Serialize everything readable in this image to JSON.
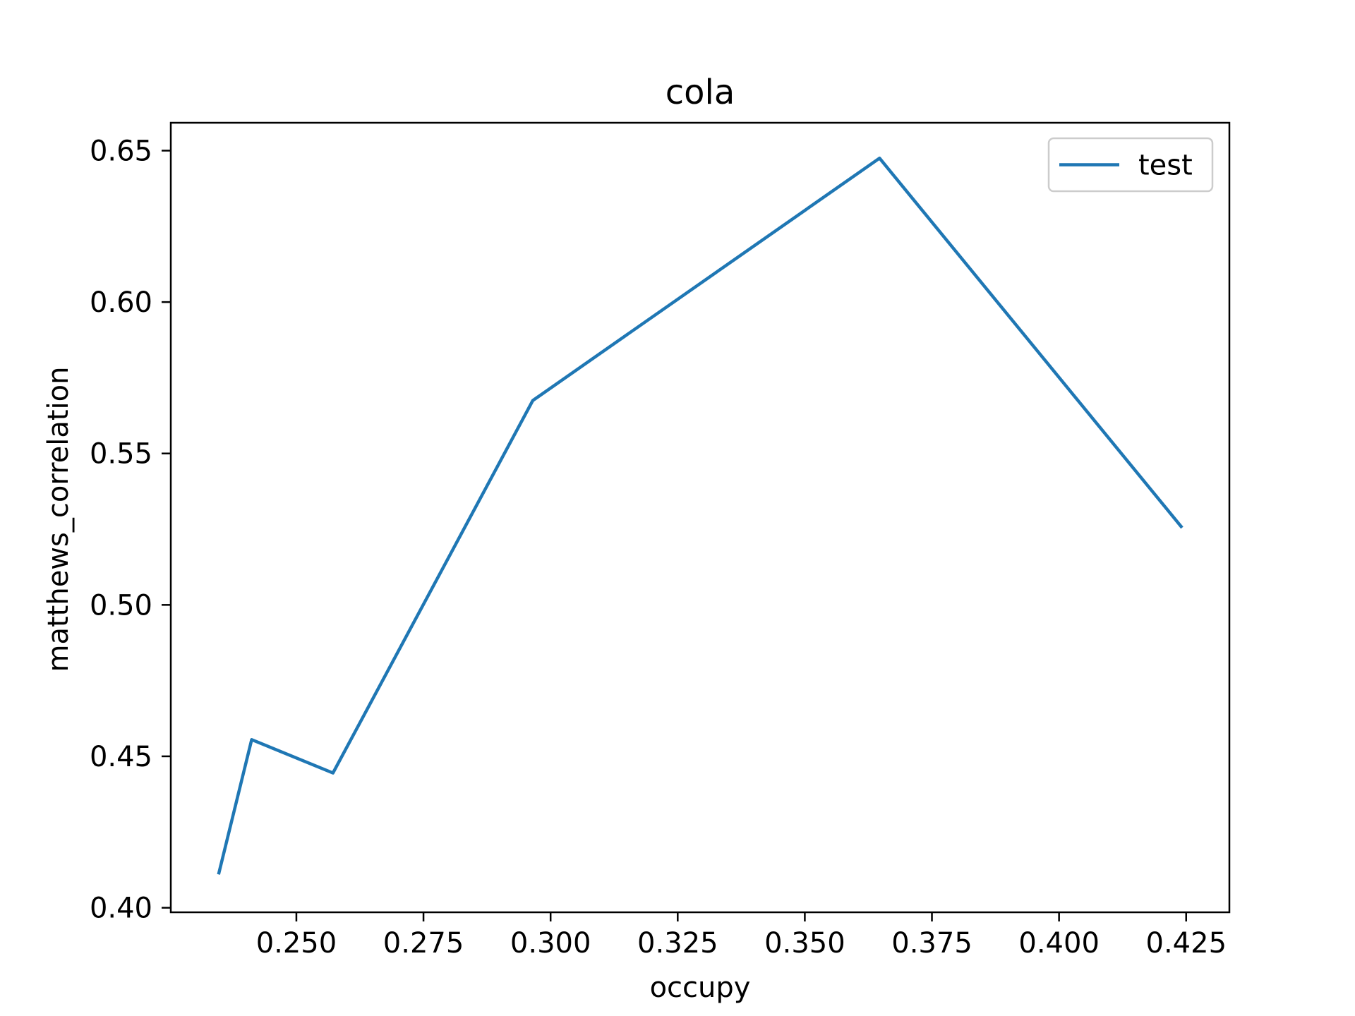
{
  "chart_data": {
    "type": "line",
    "title": "cola",
    "xlabel": "occupy",
    "ylabel": "matthews_correlation",
    "xlim": [
      0.2253,
      0.4335
    ],
    "ylim": [
      0.3985,
      0.6592
    ],
    "xticks": [
      0.25,
      0.275,
      0.3,
      0.325,
      0.35,
      0.375,
      0.4,
      0.425
    ],
    "xtick_labels": [
      "0.250",
      "0.275",
      "0.300",
      "0.325",
      "0.350",
      "0.375",
      "0.400",
      "0.425"
    ],
    "yticks": [
      0.4,
      0.45,
      0.5,
      0.55,
      0.6,
      0.65
    ],
    "ytick_labels": [
      "0.40",
      "0.45",
      "0.50",
      "0.55",
      "0.60",
      "0.65"
    ],
    "grid": false,
    "legend": "top-right",
    "series": [
      {
        "name": "test",
        "color": "#1f77b4",
        "x": [
          0.2347,
          0.2412,
          0.2572,
          0.2965,
          0.3647,
          0.4242
        ],
        "y": [
          0.411,
          0.4555,
          0.4445,
          0.5675,
          0.6475,
          0.5255
        ]
      }
    ]
  }
}
